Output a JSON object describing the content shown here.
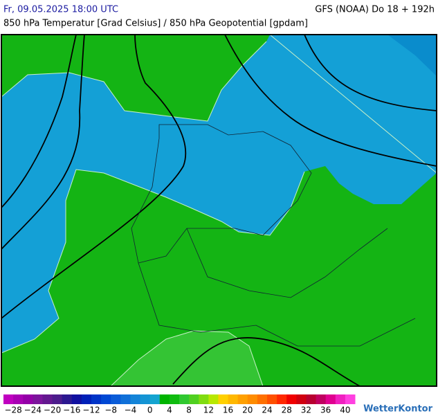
{
  "header": {
    "time": "Fr, 09.05.2025 18:00 UTC",
    "model": "GFS (NOAA) Do 18 + 192h",
    "subtitle": "850 hPa Temperatur [Grad Celsius] / 850 hPa Geopotential [gpdam]"
  },
  "legend": {
    "labels": [
      "−28",
      "−24",
      "−20",
      "−16",
      "−12",
      "−8",
      "−4",
      "0",
      "4",
      "8",
      "12",
      "16",
      "20",
      "24",
      "28",
      "32",
      "36",
      "40"
    ],
    "colors": [
      "#c000c0",
      "#a800b4",
      "#9400a8",
      "#7c149c",
      "#641890",
      "#4c1c8c",
      "#2c1890",
      "#1010a0",
      "#0020b8",
      "#0034c8",
      "#0048d4",
      "#0a5cd8",
      "#1070d8",
      "#1484d8",
      "#1494d4",
      "#14a4d0",
      "#00b400",
      "#10bc10",
      "#30c830",
      "#50d020",
      "#80dc10",
      "#b8e800",
      "#ffd000",
      "#ffb800",
      "#ffa000",
      "#ff8c00",
      "#ff7000",
      "#ff5000",
      "#ff2800",
      "#f00000",
      "#d00010",
      "#b80030",
      "#c00060",
      "#e00090",
      "#f020c0",
      "#ff40e0"
    ]
  },
  "logo": "WetterKontor"
}
